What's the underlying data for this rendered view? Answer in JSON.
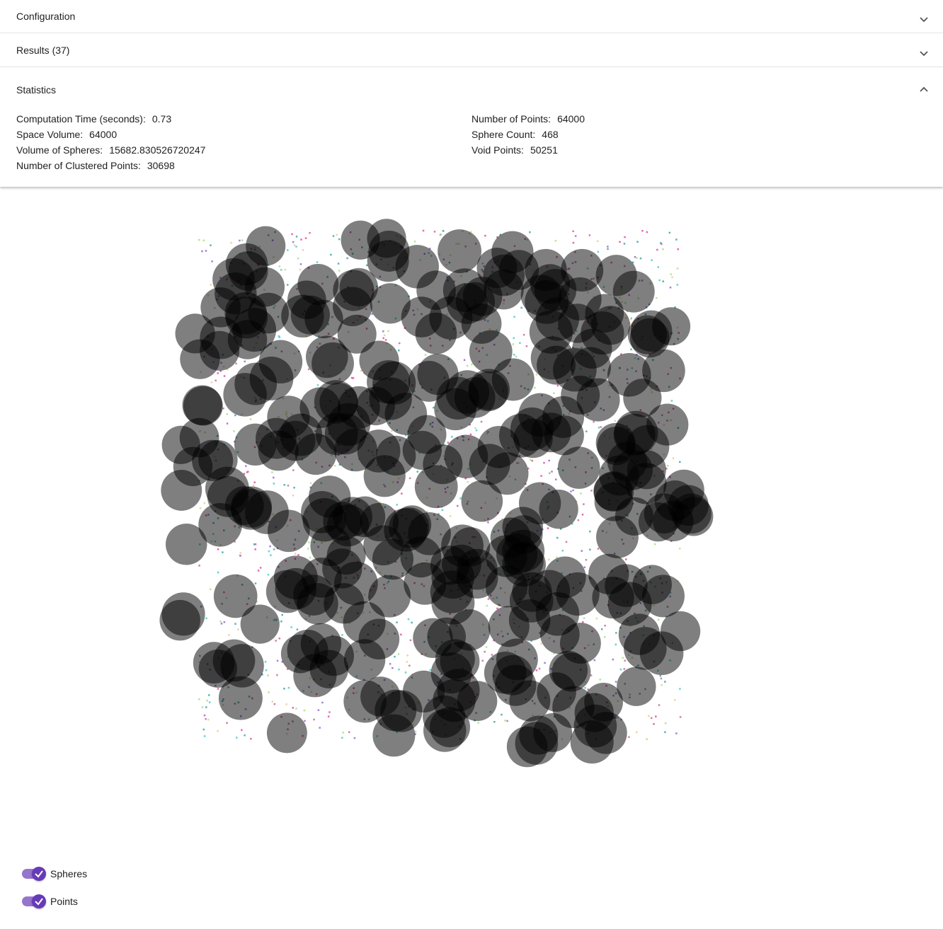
{
  "panels": [
    {
      "title": "Configuration",
      "expanded": false
    },
    {
      "title": "Results (37)",
      "expanded": false
    },
    {
      "title": "Statistics",
      "expanded": true
    }
  ],
  "statistics": {
    "left": [
      {
        "label": "Computation Time (seconds):",
        "value": 0.73
      },
      {
        "label": "Space Volume:",
        "value": 64000
      },
      {
        "label": "Volume of Spheres:",
        "value": 15682.830526720247
      },
      {
        "label": "Number of Clustered Points:",
        "value": 30698
      }
    ],
    "right": [
      {
        "label": "Number of Points:",
        "value": 64000
      },
      {
        "label": "Sphere Count:",
        "value": 468
      },
      {
        "label": "Void Points:",
        "value": 50251
      }
    ]
  },
  "toggles": [
    {
      "label": "Spheres",
      "checked": true
    },
    {
      "label": "Points",
      "checked": true
    }
  ]
}
